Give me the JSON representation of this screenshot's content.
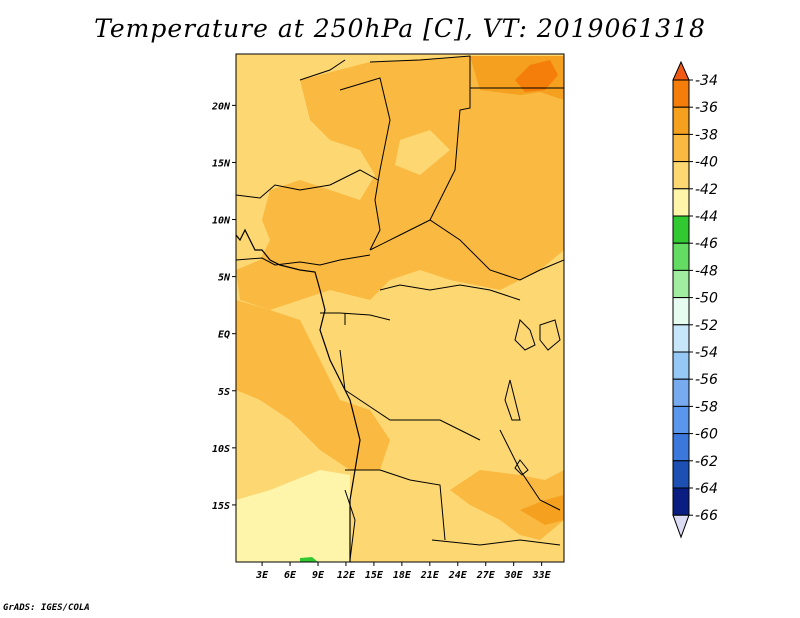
{
  "title": "Temperature at 250hPa [C], VT: 2019061318",
  "credit": "GrADS: IGES/COLA",
  "map": {
    "lon_labels": [
      "3E",
      "6E",
      "9E",
      "12E",
      "15E",
      "18E",
      "21E",
      "24E",
      "27E",
      "30E",
      "33E"
    ],
    "lon_values": [
      3,
      6,
      9,
      12,
      15,
      18,
      21,
      24,
      27,
      30,
      33
    ],
    "lat_labels": [
      "20N",
      "15N",
      "10N",
      "5N",
      "EQ",
      "5S",
      "10S",
      "15S"
    ],
    "lat_values": [
      20,
      15,
      10,
      5,
      0,
      -5,
      -10,
      -15
    ],
    "lon_range": [
      0.2,
      35.4
    ],
    "lat_range": [
      -20,
      24.5
    ]
  },
  "colorbar": {
    "labels": [
      "-34",
      "-36",
      "-38",
      "-40",
      "-42",
      "-44",
      "-46",
      "-48",
      "-50",
      "-52",
      "-54",
      "-56",
      "-58",
      "-60",
      "-62",
      "-64",
      "-66"
    ],
    "colors_top_to_bottom": [
      "#f05a14",
      "#f57d0a",
      "#f5a01e",
      "#fab941",
      "#fcd772",
      "#fff5aa",
      "#32c832",
      "#64dc64",
      "#a0eca0",
      "#e6fcf0",
      "#c8e6fa",
      "#96c8f5",
      "#78aaf0",
      "#5a96eb",
      "#3c78dc",
      "#1e50b4",
      "#0a1e82",
      "#dcdcf5"
    ]
  }
}
